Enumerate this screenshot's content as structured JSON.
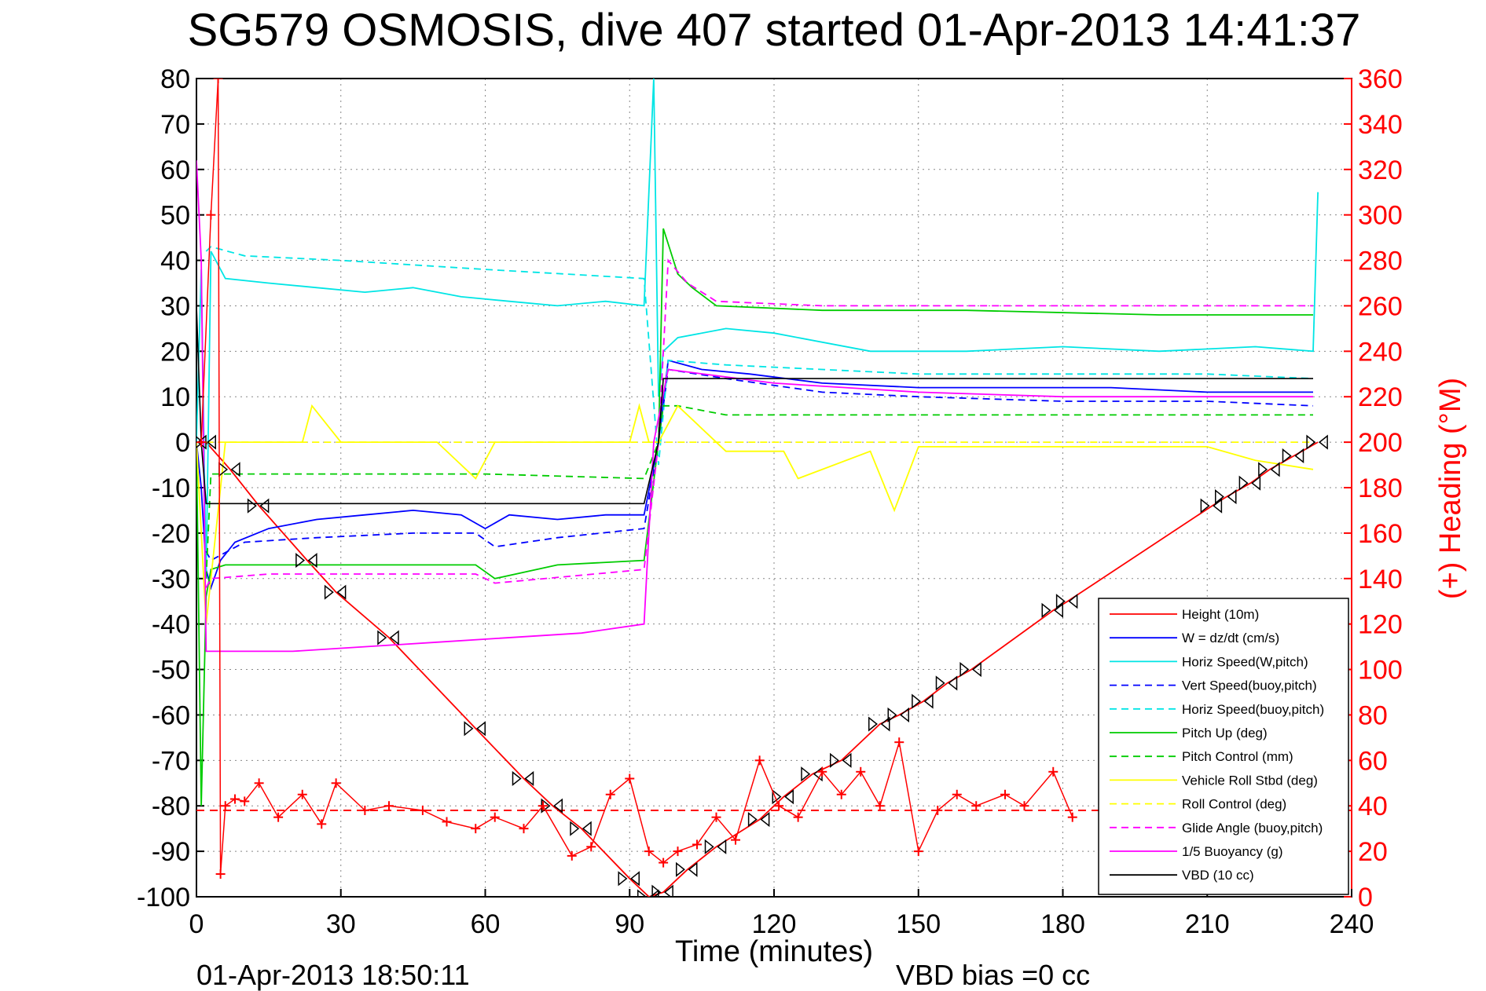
{
  "chart_data": {
    "type": "line",
    "title": "SG579 OSMOSIS, dive 407 started 01-Apr-2013 14:41:37",
    "xlabel": "Time (minutes)",
    "ylabel": "",
    "ylabel_right": "(+) Heading (°M)",
    "footer_left": "01-Apr-2013 18:50:11",
    "footer_right": "VBD bias =0 cc",
    "xlim": [
      0,
      240
    ],
    "ylim": [
      -100,
      80
    ],
    "ylim_right": [
      0,
      360
    ],
    "grid": true,
    "legend_position": "bottom-right",
    "x_ticks": [
      "0",
      "30",
      "60",
      "90",
      "120",
      "150",
      "180",
      "210",
      "240"
    ],
    "y_ticks": [
      "80",
      "70",
      "60",
      "50",
      "40",
      "30",
      "20",
      "10",
      "0",
      "-10",
      "-20",
      "-30",
      "-40",
      "-50",
      "-60",
      "-70",
      "-80",
      "-90",
      "-100"
    ],
    "y_ticks_right": [
      "360",
      "340",
      "320",
      "300",
      "280",
      "260",
      "240",
      "220",
      "200",
      "180",
      "160",
      "140",
      "120",
      "100",
      "80",
      "60",
      "40",
      "20",
      "0"
    ],
    "series": [
      {
        "name": "Height (10m)",
        "color": "#ff0000",
        "style": "solid",
        "marker": "triangle-pair",
        "x": [
          0,
          2,
          7,
          13,
          23,
          29,
          40,
          58,
          68,
          74,
          80,
          90,
          94,
          97,
          102,
          108,
          117,
          122,
          128,
          134,
          142,
          146,
          151,
          156,
          161,
          178,
          181,
          211,
          214,
          219,
          223,
          228,
          233
        ],
        "y": [
          0,
          0,
          -6,
          -14,
          -26,
          -33,
          -43,
          -63,
          -74,
          -80,
          -85,
          -96,
          -100,
          -99,
          -94,
          -89,
          -83,
          -78,
          -73,
          -70,
          -62,
          -60,
          -57,
          -53,
          -50,
          -37,
          -35,
          -14,
          -12,
          -9,
          -6,
          -3,
          0
        ]
      },
      {
        "name": "W = dz/dt (cm/s)",
        "color": "#0000ff",
        "style": "solid",
        "x": [
          0,
          1,
          2,
          3,
          5,
          8,
          15,
          25,
          35,
          45,
          55,
          60,
          65,
          75,
          85,
          93,
          96,
          98,
          105,
          115,
          130,
          150,
          170,
          190,
          210,
          232
        ],
        "y": [
          0,
          -10,
          -28,
          -32,
          -26,
          -22,
          -19,
          -17,
          -16,
          -15,
          -16,
          -19,
          -16,
          -17,
          -16,
          -16,
          0,
          18,
          16,
          15,
          13,
          12,
          12,
          12,
          11,
          11
        ]
      },
      {
        "name": "Horiz Speed(W,pitch)",
        "color": "#00e5e5",
        "style": "solid",
        "x": [
          0,
          1,
          2,
          3,
          6,
          15,
          25,
          35,
          45,
          55,
          65,
          75,
          85,
          93,
          95,
          96,
          97,
          100,
          110,
          120,
          140,
          160,
          180,
          200,
          220,
          232,
          233
        ],
        "y": [
          0,
          38,
          -30,
          42,
          36,
          35,
          34,
          33,
          34,
          32,
          31,
          30,
          31,
          30,
          80,
          10,
          20,
          23,
          25,
          24,
          20,
          20,
          21,
          20,
          21,
          20,
          55
        ]
      },
      {
        "name": "Vert Speed(buoy,pitch)",
        "color": "#0000ff",
        "style": "dashed",
        "x": [
          2,
          3,
          10,
          25,
          45,
          58,
          62,
          75,
          93,
          96,
          98,
          110,
          130,
          150,
          180,
          210,
          232
        ],
        "y": [
          -24,
          -26,
          -22,
          -21,
          -20,
          -20,
          -23,
          -21,
          -19,
          0,
          16,
          14,
          11,
          10,
          9,
          9,
          8
        ]
      },
      {
        "name": "Horiz Speed(buoy,pitch)",
        "color": "#00e5e5",
        "style": "dashed",
        "x": [
          2,
          3,
          10,
          30,
          60,
          93,
          96,
          98,
          110,
          130,
          150,
          180,
          210,
          232
        ],
        "y": [
          42,
          43,
          41,
          40,
          38,
          36,
          -5,
          18,
          17,
          16,
          15,
          15,
          15,
          14
        ]
      },
      {
        "name": "Pitch Up (deg)",
        "color": "#00cc00",
        "style": "solid",
        "x": [
          0,
          1,
          2,
          3,
          6,
          15,
          30,
          58,
          62,
          75,
          93,
          96,
          97,
          100,
          103,
          108,
          130,
          160,
          200,
          232
        ],
        "y": [
          0,
          -80,
          -34,
          -28,
          -27,
          -27,
          -27,
          -27,
          -30,
          -27,
          -26,
          0,
          47,
          37,
          34,
          30,
          29,
          29,
          28,
          28
        ]
      },
      {
        "name": "Pitch Control (mm)",
        "color": "#00cc00",
        "style": "dashed",
        "x": [
          2,
          3,
          60,
          93,
          96,
          97,
          100,
          110,
          232
        ],
        "y": [
          -30,
          -7,
          -7,
          -8,
          0,
          8,
          8,
          6,
          6
        ]
      },
      {
        "name": "Vehicle Roll Stbd (deg)",
        "color": "#ffff00",
        "style": "solid",
        "x": [
          0,
          2,
          6,
          22,
          24,
          30,
          50,
          58,
          62,
          80,
          90,
          92,
          94,
          96,
          100,
          110,
          122,
          125,
          140,
          145,
          150,
          180,
          210,
          220,
          232
        ],
        "y": [
          0,
          -40,
          0,
          0,
          8,
          0,
          0,
          -8,
          0,
          0,
          0,
          8,
          0,
          0,
          8,
          -2,
          -2,
          -8,
          -2,
          -15,
          -1,
          -1,
          -1,
          -4,
          -6
        ]
      },
      {
        "name": "Roll Control (deg)",
        "color": "#ffff00",
        "style": "dashed",
        "x": [
          2,
          6,
          40,
          90,
          96,
          100,
          110,
          140,
          180,
          220,
          232
        ],
        "y": [
          0,
          0,
          0,
          0,
          0,
          0,
          0,
          0,
          0,
          0,
          0
        ]
      },
      {
        "name": "Glide Angle (buoy,pitch)",
        "color": "#ff00ff",
        "style": "dashed",
        "x": [
          2,
          3,
          15,
          58,
          62,
          93,
          96,
          98,
          102,
          108,
          130,
          160,
          200,
          232
        ],
        "y": [
          -32,
          -30,
          -29,
          -29,
          -31,
          -28,
          0,
          40,
          35,
          31,
          30,
          30,
          30,
          30
        ]
      },
      {
        "name": "1/5 Buoyancy (g)",
        "color": "#ff00ff",
        "style": "solid",
        "x": [
          0,
          1,
          2,
          3,
          5,
          20,
          50,
          80,
          93,
          95,
          98,
          120,
          150,
          180,
          232
        ],
        "y": [
          62,
          40,
          -46,
          -46,
          -46,
          -46,
          -44,
          -42,
          -40,
          0,
          16,
          13,
          11,
          10,
          10
        ]
      },
      {
        "name": "VBD (10 cc)",
        "color": "#000000",
        "style": "solid",
        "x": [
          0,
          1,
          2,
          93,
          96,
          97,
          232
        ],
        "y": [
          30,
          0,
          -13.5,
          -13.5,
          0,
          14,
          14
        ]
      }
    ],
    "heading": {
      "color": "#ff0000",
      "marker": "+",
      "axis": "right",
      "x": [
        1,
        3,
        4.5,
        5,
        6,
        8,
        10,
        13,
        17,
        22,
        26,
        29,
        35,
        40,
        47,
        52,
        58,
        62,
        68,
        72,
        78,
        82,
        86,
        90,
        94,
        97,
        100,
        104,
        108,
        112,
        117,
        121,
        125,
        130,
        134,
        138,
        142,
        146,
        150,
        154,
        158,
        162,
        168,
        172,
        178,
        182
      ],
      "y": [
        200,
        300,
        360,
        10,
        40,
        43,
        42,
        50,
        35,
        45,
        32,
        50,
        38,
        40,
        38,
        33,
        30,
        35,
        30,
        40,
        18,
        22,
        45,
        52,
        20,
        15,
        20,
        23,
        35,
        25,
        60,
        40,
        35,
        55,
        45,
        55,
        40,
        68,
        20,
        38,
        45,
        40,
        45,
        40,
        55,
        35
      ]
    },
    "heading_ref": {
      "color": "#ff0000",
      "style": "dashed",
      "axis": "right",
      "y": 38
    }
  }
}
